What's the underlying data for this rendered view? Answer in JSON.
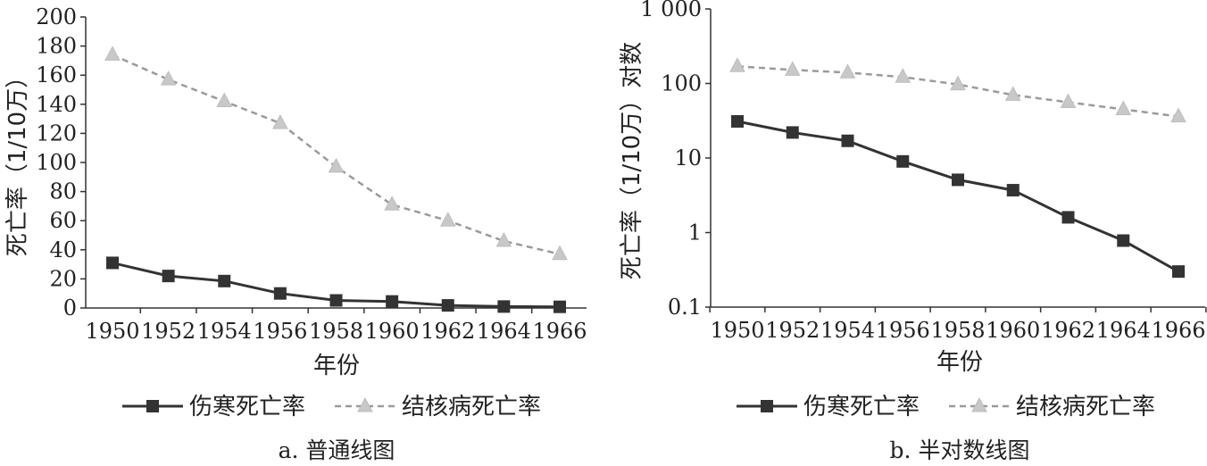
{
  "charts": [
    {
      "type": "line",
      "scale": "linear",
      "x": [
        1950,
        1952,
        1954,
        1956,
        1958,
        1960,
        1962,
        1964,
        1966
      ],
      "xtick_labels": [
        "1950",
        "1952",
        "1954",
        "1956",
        "1958",
        "1960",
        "1962",
        "1964",
        "1966"
      ],
      "ylim": [
        0,
        200
      ],
      "yticks": [
        0,
        20,
        40,
        60,
        80,
        100,
        120,
        140,
        160,
        180,
        200
      ],
      "ytick_labels": [
        "0",
        "20",
        "40",
        "60",
        "80",
        "100",
        "120",
        "140",
        "160",
        "180",
        "200"
      ],
      "xlabel": "年份",
      "ylabel": "死亡率（1/10万）",
      "caption": "a. 普通线图",
      "legend_position": "bottom",
      "series": [
        {
          "name": "伤寒死亡率",
          "style": "solid",
          "marker": "square",
          "color": "#333333",
          "values": [
            31,
            22,
            18.5,
            10,
            5.2,
            4.5,
            1.8,
            1,
            0.8
          ]
        },
        {
          "name": "结核病死亡率",
          "style": "dashed",
          "marker": "triangle",
          "color": "#9a9a9a",
          "marker_color": "#c8c8c8",
          "values": [
            174,
            157,
            142,
            127,
            97,
            71,
            60,
            46,
            37
          ]
        }
      ]
    },
    {
      "type": "line",
      "scale": "log",
      "x": [
        1950,
        1952,
        1954,
        1956,
        1958,
        1960,
        1962,
        1964,
        1966
      ],
      "xtick_labels": [
        "1950",
        "1952",
        "1954",
        "1956",
        "1958",
        "1960",
        "1962",
        "1964",
        "1966"
      ],
      "ylim": [
        0.1,
        1000
      ],
      "yticks": [
        0.1,
        1,
        10,
        100,
        1000
      ],
      "ytick_labels": [
        "0.1",
        "1",
        "10",
        "100",
        "1 000"
      ],
      "xlabel": "年份",
      "ylabel": "死亡率（1/10万）对数",
      "caption": "b. 半对数线图",
      "legend_position": "bottom",
      "series": [
        {
          "name": "伤寒死亡率",
          "style": "solid",
          "marker": "square",
          "color": "#333333",
          "values": [
            31,
            22,
            17,
            9,
            5.1,
            3.7,
            1.6,
            0.78,
            0.3
          ]
        },
        {
          "name": "结核病死亡率",
          "style": "dashed",
          "marker": "triangle",
          "color": "#9a9a9a",
          "marker_color": "#c8c8c8",
          "values": [
            170,
            152,
            140,
            122,
            97,
            70,
            56,
            45,
            36
          ]
        }
      ]
    }
  ]
}
